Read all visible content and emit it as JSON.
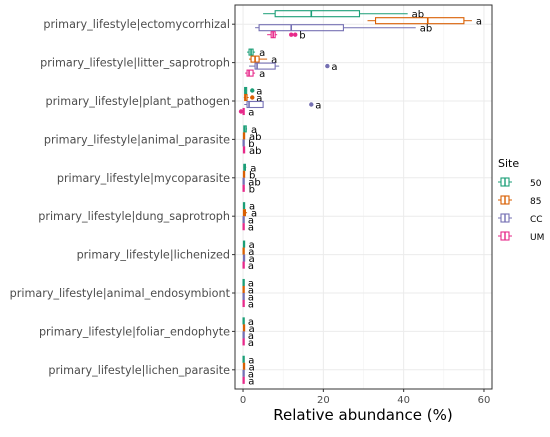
{
  "chart_data": {
    "type": "boxplot",
    "title": "",
    "xlabel": "Relative abundance (%)",
    "ylabel": "",
    "xlim": [
      -2,
      62
    ],
    "xticks": [
      0,
      20,
      40,
      60
    ],
    "grid": true,
    "legend": {
      "title": "Site",
      "placement": "right",
      "entries": [
        "50",
        "85",
        "CC",
        "UM"
      ]
    },
    "colors": {
      "50": "#1b9e77",
      "85": "#d95f02",
      "CC": "#7570b3",
      "UM": "#e7298a"
    },
    "categories": [
      "primary_lifestyle|ectomycorrhizal",
      "primary_lifestyle|litter_saprotroph",
      "primary_lifestyle|plant_pathogen",
      "primary_lifestyle|animal_parasite",
      "primary_lifestyle|mycoparasite",
      "primary_lifestyle|dung_saprotroph",
      "primary_lifestyle|lichenized",
      "primary_lifestyle|animal_endosymbiont",
      "primary_lifestyle|foliar_endophyte",
      "primary_lifestyle|lichen_parasite"
    ],
    "series": [
      {
        "name": "50",
        "boxes": [
          {
            "whislo": 5,
            "q1": 8,
            "med": 17,
            "q3": 29,
            "whishi": 41,
            "outliers": [],
            "letter": "ab"
          },
          {
            "whislo": 1,
            "q1": 1.5,
            "med": 2,
            "q3": 2.5,
            "whishi": 3,
            "outliers": [],
            "letter": "a"
          },
          {
            "whislo": 0.3,
            "q1": 0.4,
            "med": 0.6,
            "q3": 0.9,
            "whishi": 1,
            "outliers": [
              2.3
            ],
            "letter": "a"
          },
          {
            "whislo": 0.1,
            "q1": 0.2,
            "med": 0.4,
            "q3": 0.8,
            "whishi": 1,
            "outliers": [],
            "letter": "a"
          },
          {
            "whislo": 0.1,
            "q1": 0.2,
            "med": 0.3,
            "q3": 0.6,
            "whishi": 0.8,
            "outliers": [],
            "letter": "a"
          },
          {
            "whislo": 0,
            "q1": 0.1,
            "med": 0.2,
            "q3": 0.4,
            "whishi": 0.5,
            "outliers": [],
            "letter": "a"
          },
          {
            "whislo": 0,
            "q1": 0.1,
            "med": 0.2,
            "q3": 0.3,
            "whishi": 0.4,
            "outliers": [],
            "letter": "a"
          },
          {
            "whislo": 0,
            "q1": 0,
            "med": 0.1,
            "q3": 0.1,
            "whishi": 0.2,
            "outliers": [],
            "letter": "a"
          },
          {
            "whislo": 0,
            "q1": 0,
            "med": 0.1,
            "q3": 0.1,
            "whishi": 0.2,
            "outliers": [],
            "letter": "a"
          },
          {
            "whislo": 0,
            "q1": 0,
            "med": 0.1,
            "q3": 0.2,
            "whishi": 0.3,
            "outliers": [],
            "letter": "a"
          }
        ]
      },
      {
        "name": "85",
        "boxes": [
          {
            "whislo": 31,
            "q1": 33,
            "med": 46,
            "q3": 55,
            "whishi": 57,
            "outliers": [],
            "letter": "a"
          },
          {
            "whislo": 1.5,
            "q1": 2,
            "med": 3,
            "q3": 4,
            "whishi": 6,
            "outliers": [],
            "letter": "a"
          },
          {
            "whislo": 0.2,
            "q1": 0.4,
            "med": 0.6,
            "q3": 1,
            "whishi": 1.4,
            "outliers": [
              2.3
            ],
            "letter": "a"
          },
          {
            "whislo": 0,
            "q1": 0.1,
            "med": 0.2,
            "q3": 0.4,
            "whishi": 0.5,
            "outliers": [],
            "letter": "ab"
          },
          {
            "whislo": 0,
            "q1": 0.1,
            "med": 0.2,
            "q3": 0.4,
            "whishi": 0.5,
            "outliers": [],
            "letter": "b"
          },
          {
            "whislo": 0,
            "q1": 0.1,
            "med": 0.3,
            "q3": 0.6,
            "whishi": 1,
            "outliers": [],
            "letter": "a"
          },
          {
            "whislo": 0,
            "q1": 0,
            "med": 0.1,
            "q3": 0.2,
            "whishi": 0.3,
            "outliers": [],
            "letter": "a"
          },
          {
            "whislo": 0,
            "q1": 0,
            "med": 0.1,
            "q3": 0.1,
            "whishi": 0.2,
            "outliers": [],
            "letter": "a"
          },
          {
            "whislo": 0,
            "q1": 0.1,
            "med": 0.2,
            "q3": 0.3,
            "whishi": 0.4,
            "outliers": [],
            "letter": "a"
          },
          {
            "whislo": 0,
            "q1": 0.1,
            "med": 0.2,
            "q3": 0.3,
            "whishi": 0.4,
            "outliers": [],
            "letter": "a"
          }
        ]
      },
      {
        "name": "CC",
        "boxes": [
          {
            "whislo": 3,
            "q1": 4,
            "med": 12,
            "q3": 25,
            "whishi": 43,
            "outliers": [],
            "letter": "ab"
          },
          {
            "whislo": 1.5,
            "q1": 3,
            "med": 3.5,
            "q3": 8,
            "whishi": 9,
            "outliers": [
              21
            ],
            "letter": "a"
          },
          {
            "whislo": 0.3,
            "q1": 1,
            "med": 1.5,
            "q3": 5,
            "whishi": 5,
            "outliers": [
              17
            ],
            "letter": "a"
          },
          {
            "whislo": 0,
            "q1": 0,
            "med": 0.1,
            "q3": 0.2,
            "whishi": 0.3,
            "outliers": [],
            "letter": "b"
          },
          {
            "whislo": 0,
            "q1": 0,
            "med": 0.1,
            "q3": 0.2,
            "whishi": 0.3,
            "outliers": [],
            "letter": "ab"
          },
          {
            "whislo": 0,
            "q1": 0,
            "med": 0.1,
            "q3": 0.1,
            "whishi": 0.2,
            "outliers": [],
            "letter": "a"
          },
          {
            "whislo": 0,
            "q1": 0.1,
            "med": 0.2,
            "q3": 0.3,
            "whishi": 0.4,
            "outliers": [],
            "letter": "a"
          },
          {
            "whislo": 0,
            "q1": 0,
            "med": 0.1,
            "q3": 0.1,
            "whishi": 0.2,
            "outliers": [],
            "letter": "a"
          },
          {
            "whislo": 0,
            "q1": 0,
            "med": 0.1,
            "q3": 0.1,
            "whishi": 0.2,
            "outliers": [],
            "letter": "a"
          },
          {
            "whislo": 0,
            "q1": 0,
            "med": 0.1,
            "q3": 0.1,
            "whishi": 0.2,
            "outliers": [],
            "letter": "a"
          }
        ]
      },
      {
        "name": "UM",
        "boxes": [
          {
            "whislo": 6,
            "q1": 7,
            "med": 7.5,
            "q3": 8,
            "whishi": 8.5,
            "outliers": [
              12,
              13
            ],
            "letter": "b"
          },
          {
            "whislo": 0.5,
            "q1": 1,
            "med": 1.5,
            "q3": 2.5,
            "whishi": 3,
            "outliers": [],
            "letter": "a"
          },
          {
            "whislo": 0,
            "q1": 0,
            "med": 0.1,
            "q3": 0.2,
            "whishi": 0.3,
            "outliers": [
              -0.5
            ],
            "letter": "a"
          },
          {
            "whislo": 0,
            "q1": 0.1,
            "med": 0.2,
            "q3": 0.4,
            "whishi": 0.5,
            "outliers": [],
            "letter": "ab"
          },
          {
            "whislo": 0,
            "q1": 0,
            "med": 0.1,
            "q3": 0.3,
            "whishi": 0.4,
            "outliers": [],
            "letter": "b"
          },
          {
            "whislo": 0,
            "q1": 0,
            "med": 0.1,
            "q3": 0.1,
            "whishi": 0.2,
            "outliers": [],
            "letter": "a"
          },
          {
            "whislo": 0,
            "q1": 0,
            "med": 0.1,
            "q3": 0.1,
            "whishi": 0.2,
            "outliers": [],
            "letter": "a"
          },
          {
            "whislo": 0,
            "q1": 0,
            "med": 0.1,
            "q3": 0.1,
            "whishi": 0.2,
            "outliers": [],
            "letter": "a"
          },
          {
            "whislo": 0,
            "q1": 0,
            "med": 0.1,
            "q3": 0.1,
            "whishi": 0.2,
            "outliers": [],
            "letter": "a"
          },
          {
            "whislo": 0,
            "q1": 0,
            "med": 0.1,
            "q3": 0.2,
            "whishi": 0.3,
            "outliers": [],
            "letter": "a"
          }
        ]
      }
    ]
  }
}
